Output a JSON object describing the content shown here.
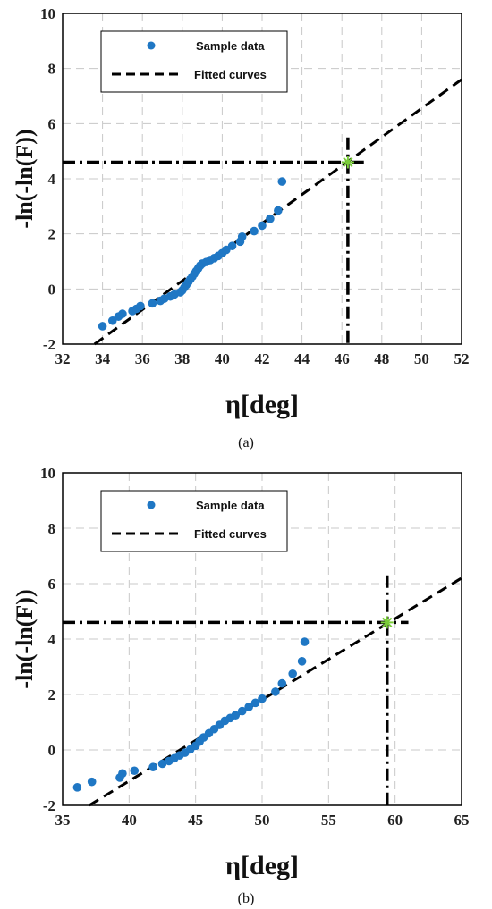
{
  "chart_data": [
    {
      "type": "scatter",
      "caption": "(a)",
      "xlabel": "η[deg]",
      "ylabel": "-ln(-ln(F))",
      "xlim": [
        32,
        52
      ],
      "ylim": [
        -2,
        10
      ],
      "xticks": [
        32,
        34,
        36,
        38,
        40,
        42,
        44,
        46,
        48,
        50,
        52
      ],
      "yticks": [
        -2,
        0,
        2,
        4,
        6,
        8,
        10
      ],
      "grid": true,
      "legend_position": "top-left",
      "series": [
        {
          "name": "Sample data",
          "kind": "scatter",
          "color": "#1f77c4",
          "x": [
            34.0,
            34.5,
            34.8,
            35.0,
            35.5,
            35.7,
            35.9,
            36.5,
            36.9,
            37.1,
            37.4,
            37.6,
            37.9,
            38.0,
            38.1,
            38.2,
            38.3,
            38.4,
            38.5,
            38.6,
            38.7,
            38.8,
            38.9,
            39.0,
            39.2,
            39.4,
            39.6,
            39.8,
            40.0,
            40.2,
            40.5,
            40.9,
            41.0,
            41.6,
            42.0,
            42.4,
            42.8,
            43.0
          ],
          "y": [
            -1.35,
            -1.15,
            -1.0,
            -0.9,
            -0.8,
            -0.72,
            -0.62,
            -0.52,
            -0.43,
            -0.35,
            -0.27,
            -0.2,
            -0.12,
            -0.05,
            0.05,
            0.15,
            0.25,
            0.35,
            0.45,
            0.55,
            0.65,
            0.75,
            0.85,
            0.92,
            0.98,
            1.05,
            1.12,
            1.2,
            1.3,
            1.42,
            1.56,
            1.72,
            1.9,
            2.1,
            2.3,
            2.55,
            2.85,
            3.9
          ]
        },
        {
          "name": "Fitted curves",
          "kind": "line",
          "color": "#000000",
          "x": [
            33.6,
            52
          ],
          "y": [
            -2.0,
            7.6
          ]
        }
      ],
      "reference_point": {
        "x": 46.3,
        "y": 4.6,
        "color": "#7acc3a"
      },
      "reference_lines": {
        "hline_y": 4.6,
        "hline_x_end": 47.1,
        "vline_x": 46.3,
        "vline_y_end": 5.5
      }
    },
    {
      "type": "scatter",
      "caption": "(b)",
      "xlabel": "η[deg]",
      "ylabel": "-ln(-ln(F))",
      "xlim": [
        35,
        65
      ],
      "ylim": [
        -2,
        10
      ],
      "xticks": [
        35,
        40,
        45,
        50,
        55,
        60,
        65
      ],
      "yticks": [
        -2,
        0,
        2,
        4,
        6,
        8,
        10
      ],
      "grid": true,
      "legend_position": "top-left",
      "series": [
        {
          "name": "Sample data",
          "kind": "scatter",
          "color": "#1f77c4",
          "x": [
            36.1,
            37.2,
            39.3,
            39.5,
            40.4,
            41.8,
            42.5,
            43.0,
            43.4,
            43.8,
            44.2,
            44.6,
            45.0,
            45.3,
            45.6,
            46.0,
            46.4,
            46.8,
            47.2,
            47.6,
            48.0,
            48.5,
            49.0,
            49.5,
            50.0,
            51.0,
            51.5,
            52.3,
            53.0,
            53.2
          ],
          "y": [
            -1.35,
            -1.15,
            -1.0,
            -0.85,
            -0.75,
            -0.62,
            -0.5,
            -0.4,
            -0.3,
            -0.2,
            -0.1,
            0.02,
            0.15,
            0.3,
            0.45,
            0.6,
            0.75,
            0.9,
            1.05,
            1.15,
            1.25,
            1.4,
            1.55,
            1.7,
            1.85,
            2.1,
            2.4,
            2.75,
            3.2,
            3.9
          ]
        },
        {
          "name": "Fitted curves",
          "kind": "line",
          "color": "#000000",
          "x": [
            37.0,
            65
          ],
          "y": [
            -2.0,
            6.2
          ]
        }
      ],
      "reference_point": {
        "x": 59.4,
        "y": 4.6,
        "color": "#7acc3a"
      },
      "reference_lines": {
        "hline_y": 4.6,
        "hline_x_end": 61.0,
        "vline_x": 59.4,
        "vline_y_end": 6.3
      }
    }
  ]
}
